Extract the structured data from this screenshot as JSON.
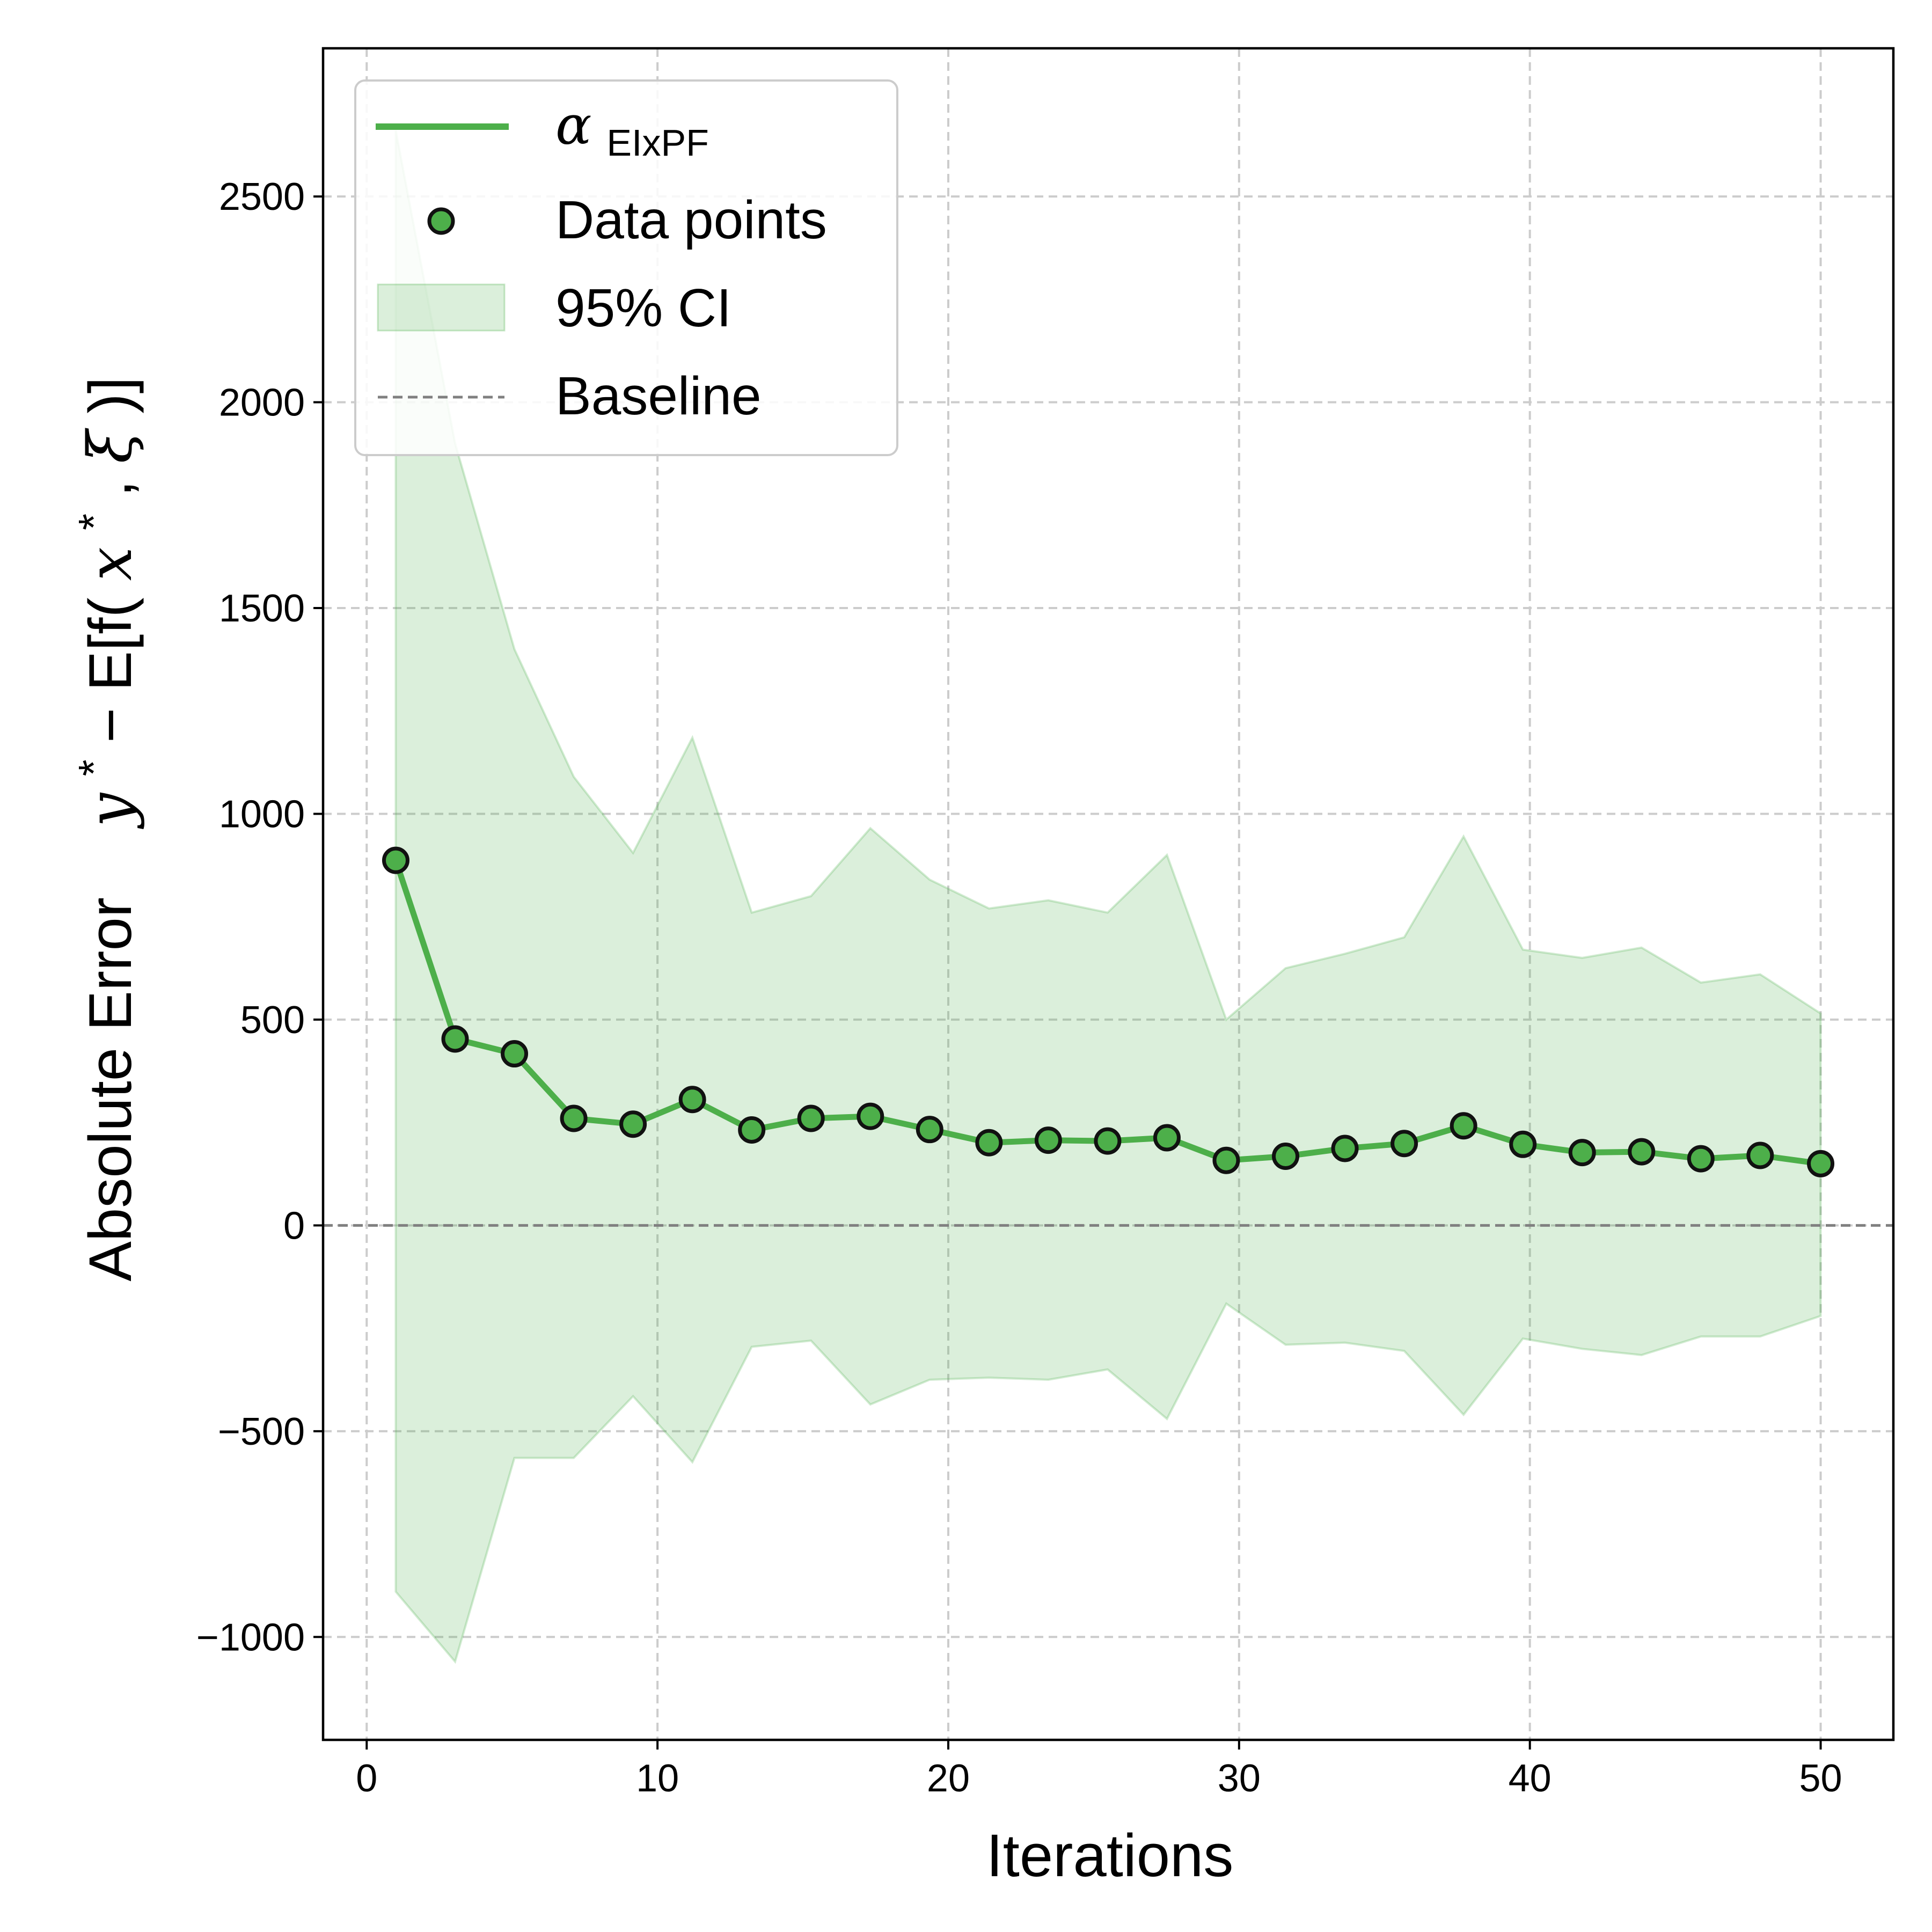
{
  "chart_data": {
    "type": "line",
    "xlabel": "Iterations",
    "ylabel": {
      "prefix": "Absolute Error",
      "y": "y",
      "star": "*",
      "expr": " − E[f(",
      "x": "x",
      "star2": "*",
      "comma": ", ",
      "xi": "ξ",
      "close": ")]"
    },
    "xlim": [
      -1.5,
      52.5
    ],
    "ylim": [
      -1250,
      2860
    ],
    "xticks": [
      0,
      10,
      20,
      30,
      40,
      50
    ],
    "yticks": [
      -1000,
      -500,
      0,
      500,
      1000,
      1500,
      2000,
      2500
    ],
    "ytick_labels": [
      "−1000",
      "−500",
      "0",
      "500",
      "1000",
      "1500",
      "2000",
      "2500"
    ],
    "grid": true,
    "legend_position": "upper-left",
    "x": [
      1.0,
      3.04,
      5.08,
      7.12,
      9.16,
      11.2,
      13.24,
      15.28,
      17.32,
      19.36,
      21.4,
      23.44,
      25.48,
      27.52,
      29.56,
      31.6,
      33.64,
      35.68,
      37.72,
      39.76,
      41.8,
      43.84,
      45.88,
      47.92,
      50.0
    ],
    "series": [
      {
        "name_base": "α",
        "name_sub": "EIxPF",
        "values": [
          887,
          453,
          417,
          260,
          246,
          306,
          232,
          260,
          265,
          233,
          201,
          207,
          205,
          213,
          158,
          168,
          187,
          199,
          242,
          197,
          177,
          179,
          162,
          170,
          150
        ],
        "color": "#4daf4a"
      }
    ],
    "scatter": {
      "name": "Data points",
      "fill": "#4daf4a",
      "edge": "#111111"
    },
    "ci": {
      "name": "95% CI",
      "upper": [
        2660,
        1900,
        1400,
        1090,
        905,
        1185,
        760,
        800,
        965,
        840,
        770,
        790,
        760,
        900,
        500,
        625,
        660,
        700,
        945,
        670,
        650,
        675,
        590,
        610,
        515
      ],
      "lower": [
        -890,
        -1060,
        -565,
        -565,
        -415,
        -575,
        -295,
        -280,
        -435,
        -375,
        -370,
        -375,
        -350,
        -470,
        -190,
        -290,
        -285,
        -305,
        -460,
        -275,
        -300,
        -315,
        -270,
        -270,
        -220
      ],
      "color": "#4daf4a"
    },
    "baseline": {
      "name": "Baseline",
      "value": 0,
      "color": "#808080"
    }
  }
}
